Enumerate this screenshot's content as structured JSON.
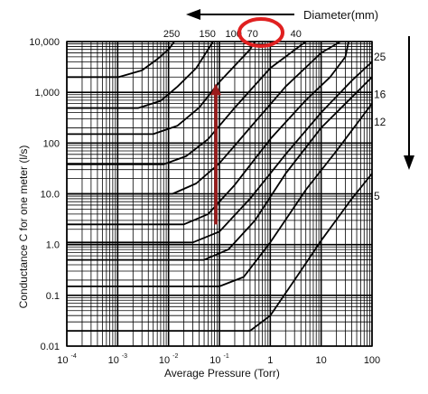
{
  "chart_data": {
    "type": "line",
    "title": "",
    "xlabel": "Average Pressure (Torr)",
    "ylabel": "Conductance C for one meter (l/s)",
    "x_scale": "log",
    "y_scale": "log",
    "xlim": [
      0.0001,
      100
    ],
    "ylim": [
      0.01,
      10000
    ],
    "x_tick_values": [
      0.0001,
      0.001,
      0.01,
      0.1,
      1,
      10,
      100
    ],
    "x_tick_labels": [
      {
        "base": "10",
        "exp": "-4"
      },
      {
        "base": "10",
        "exp": "-3"
      },
      {
        "base": "10",
        "exp": "-2"
      },
      {
        "base": "10",
        "exp": "-1"
      },
      {
        "base": "1",
        "exp": ""
      },
      {
        "base": "10",
        "exp": ""
      },
      {
        "base": "100",
        "exp": ""
      }
    ],
    "y_tick_values": [
      10000,
      1000,
      100,
      10,
      1,
      0.1,
      0.01
    ],
    "y_tick_labels": [
      "10,000",
      "1,000",
      "100",
      "10.0",
      "1.0",
      "0.1",
      "0.01"
    ],
    "grid": true,
    "top_axis": {
      "title": "Diameter(mm)",
      "labels": [
        {
          "text": "250",
          "x": 0.0115
        },
        {
          "text": "150",
          "x": 0.058
        },
        {
          "text": "100",
          "x": 0.19
        },
        {
          "text": "70",
          "x": 0.45
        },
        {
          "text": "40",
          "x": 3.2
        }
      ],
      "highlighted": "100"
    },
    "right_labels": [
      {
        "text": "25",
        "y": 5000
      },
      {
        "text": "16",
        "y": 900
      },
      {
        "text": "12",
        "y": 260
      },
      {
        "text": "5",
        "y": 9
      }
    ],
    "series": [
      {
        "points": [
          [
            0.0001,
            2000
          ],
          [
            0.00105,
            2000
          ],
          [
            0.003,
            2700
          ],
          [
            0.006,
            4500
          ],
          [
            0.01,
            7000
          ],
          [
            0.013,
            10000
          ]
        ]
      },
      {
        "points": [
          [
            0.0001,
            490
          ],
          [
            0.0025,
            490
          ],
          [
            0.007,
            680
          ],
          [
            0.015,
            1300
          ],
          [
            0.035,
            3000
          ],
          [
            0.075,
            10000
          ]
        ]
      },
      {
        "points": [
          [
            0.0001,
            150
          ],
          [
            0.005,
            150
          ],
          [
            0.015,
            220
          ],
          [
            0.04,
            500
          ],
          [
            0.1,
            1600
          ],
          [
            0.4,
            7000
          ],
          [
            0.5,
            10000
          ]
        ]
      },
      {
        "points": [
          [
            0.0001,
            38
          ],
          [
            0.008,
            38
          ],
          [
            0.022,
            55
          ],
          [
            0.06,
            120
          ],
          [
            0.2,
            500
          ],
          [
            1,
            3000
          ],
          [
            5,
            10000
          ]
        ]
      },
      {
        "points": [
          [
            0.0001,
            10
          ],
          [
            0.012,
            10
          ],
          [
            0.035,
            16
          ],
          [
            0.1,
            40
          ],
          [
            0.4,
            200
          ],
          [
            2,
            1300
          ],
          [
            10,
            6000
          ],
          [
            24,
            10000
          ]
        ]
      },
      {
        "points": [
          [
            0.0001,
            2.5
          ],
          [
            0.02,
            2.5
          ],
          [
            0.06,
            4
          ],
          [
            0.2,
            15
          ],
          [
            1,
            120
          ],
          [
            5,
            700
          ],
          [
            15,
            2000
          ],
          [
            30,
            5000
          ],
          [
            100,
            1500000
          ]
        ]
      },
      {
        "points": [
          [
            0.0001,
            1.1
          ],
          [
            0.03,
            1.1
          ],
          [
            0.1,
            1.8
          ],
          [
            0.4,
            8
          ],
          [
            2,
            60
          ],
          [
            10,
            400
          ],
          [
            40,
            1700
          ],
          [
            100,
            4000
          ]
        ]
      },
      {
        "points": [
          [
            0.0001,
            0.5
          ],
          [
            0.05,
            0.5
          ],
          [
            0.15,
            0.8
          ],
          [
            0.5,
            3
          ],
          [
            2,
            25
          ],
          [
            10,
            200
          ],
          [
            40,
            800
          ],
          [
            100,
            2000
          ]
        ]
      },
      {
        "points": [
          [
            0.0001,
            0.15
          ],
          [
            0.1,
            0.15
          ],
          [
            0.3,
            0.23
          ],
          [
            1,
            1.1
          ],
          [
            5,
            12
          ],
          [
            20,
            70
          ],
          [
            100,
            600
          ]
        ]
      },
      {
        "points": [
          [
            0.0001,
            0.02
          ],
          [
            0.4,
            0.02
          ],
          [
            1,
            0.04
          ],
          [
            3,
            0.2
          ],
          [
            10,
            1.2
          ],
          [
            40,
            8
          ],
          [
            100,
            25
          ]
        ]
      }
    ],
    "highlight_arrow": {
      "from": [
        0.085,
        2.5
      ],
      "to": [
        0.085,
        1500
      ],
      "color": "#9b1b1b"
    },
    "direction_arrows": [
      "left-pointing arrow along the top axis",
      "downward-pointing arrow on the right side"
    ],
    "highlight_circle_color": "#e02020"
  }
}
